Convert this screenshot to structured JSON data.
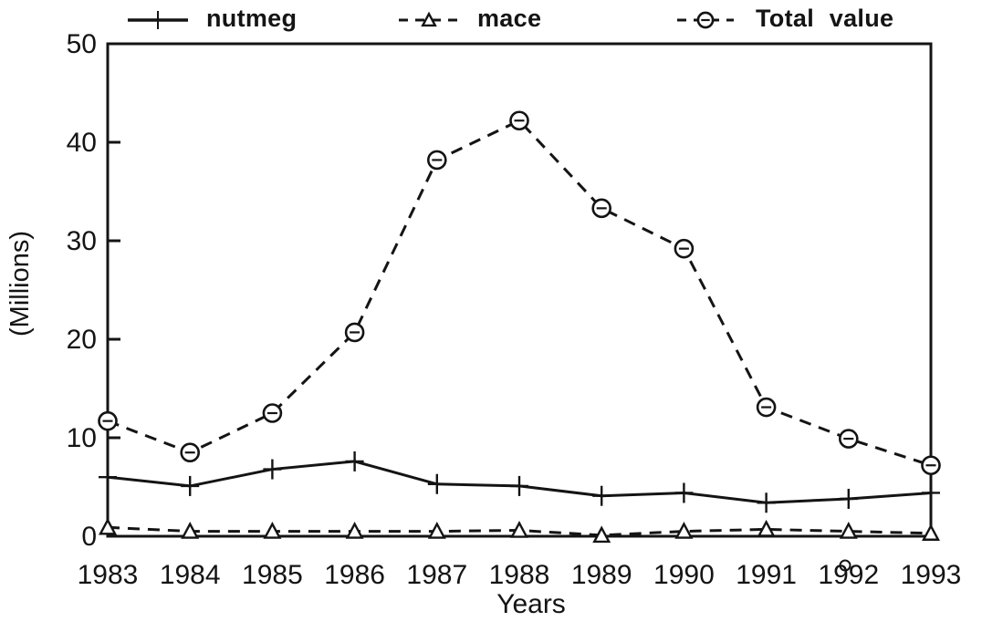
{
  "figure": {
    "background": "#ffffff",
    "ink_color": "#141414"
  },
  "chart_data": {
    "type": "line",
    "title": "",
    "xlabel": "Years",
    "ylabel": "(Millions)",
    "ylim": [
      0,
      50
    ],
    "yticks": [
      0,
      10,
      20,
      30,
      40,
      50
    ],
    "grid": false,
    "legend_position": "top",
    "categories": [
      "1983",
      "1984",
      "1985",
      "1986",
      "1987",
      "1988",
      "1989",
      "1990",
      "1991",
      "1992",
      "1993"
    ],
    "series": [
      {
        "name": "nutmeg",
        "line": "solid",
        "marker": "plus",
        "values": [
          6.0,
          5.1,
          6.8,
          7.6,
          5.3,
          5.1,
          4.1,
          4.4,
          3.4,
          3.8,
          4.4
        ]
      },
      {
        "name": "mace",
        "line": "dashed",
        "marker": "triangle",
        "values": [
          0.9,
          0.5,
          0.5,
          0.5,
          0.5,
          0.6,
          0.1,
          0.5,
          0.7,
          0.5,
          0.3
        ]
      },
      {
        "name": "Total value",
        "line": "dashed",
        "marker": "circle",
        "values": [
          11.7,
          8.5,
          12.5,
          20.7,
          38.2,
          42.2,
          33.3,
          29.2,
          13.1,
          9.9,
          7.2
        ]
      }
    ]
  }
}
